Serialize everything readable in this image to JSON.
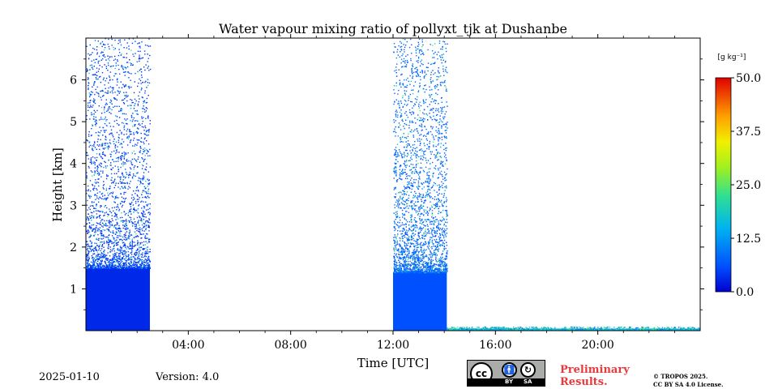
{
  "chart_data": {
    "type": "heatmap",
    "title": "Water vapour mixing ratio of pollyxt_tjk at Dushanbe",
    "xlabel": "Time [UTC]",
    "ylabel": "Height [km]",
    "xlim_hours": [
      0,
      24
    ],
    "ylim_km": [
      0,
      7
    ],
    "x_ticks": [
      {
        "hour": 4,
        "label": "04:00"
      },
      {
        "hour": 8,
        "label": "08:00"
      },
      {
        "hour": 12,
        "label": "12:00"
      },
      {
        "hour": 16,
        "label": "16:00"
      },
      {
        "hour": 20,
        "label": "20:00"
      }
    ],
    "y_ticks": [
      {
        "value": 1,
        "label": "1"
      },
      {
        "value": 2,
        "label": "2"
      },
      {
        "value": 3,
        "label": "3"
      },
      {
        "value": 4,
        "label": "4"
      },
      {
        "value": 5,
        "label": "5"
      },
      {
        "value": 6,
        "label": "6"
      }
    ],
    "colorbar": {
      "label": "[g kg⁻¹]",
      "range": [
        0,
        50
      ],
      "ticks": [
        "0.0",
        "12.5",
        "25.0",
        "37.5",
        "50.0"
      ],
      "colormap": "jet"
    },
    "grid": false,
    "measurement_periods": [
      {
        "start_hour": 0.0,
        "end_hour": 2.5,
        "dense_top_km": 1.5,
        "max_signal_km": 7.0,
        "typical_value": 3
      },
      {
        "start_hour": 12.0,
        "end_hour": 14.1,
        "dense_top_km": 1.4,
        "max_signal_km": 7.0,
        "typical_value": 6
      },
      {
        "start_hour": 14.1,
        "end_hour": 24.0,
        "dense_top_km": 0.05,
        "max_signal_km": 0.1,
        "typical_value": 15
      }
    ]
  },
  "footer": {
    "date": "2025-01-10",
    "version": "Version: 4.0",
    "license_badge": {
      "cc": "cc",
      "by": "BY",
      "sa": "SA"
    },
    "preliminary": [
      "Preliminary",
      "Results."
    ],
    "copyright": [
      "© TROPOS 2025.",
      "CC BY SA 4.0 License."
    ]
  }
}
